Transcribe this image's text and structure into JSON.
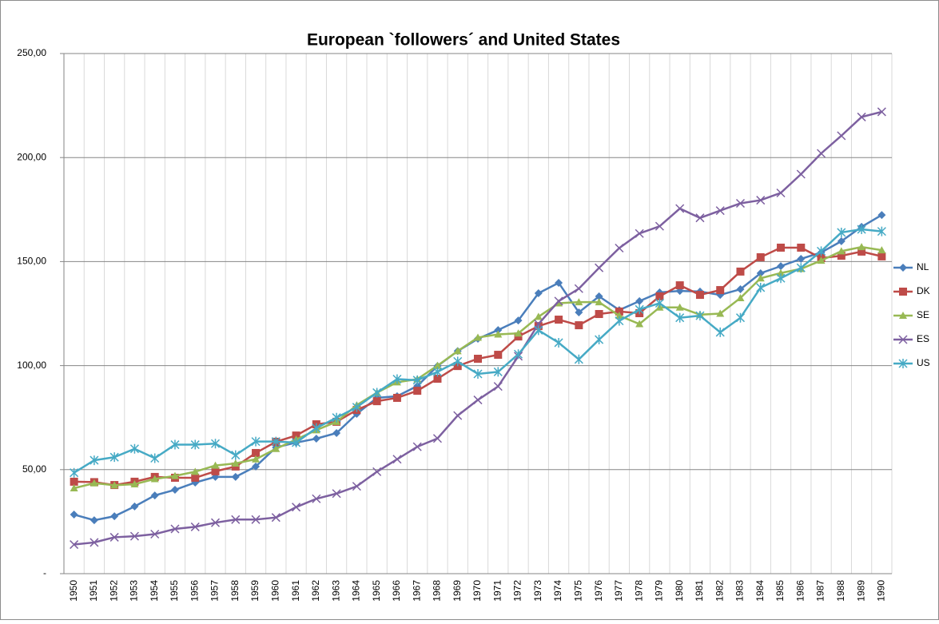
{
  "chart_data": {
    "type": "line",
    "title": "European `followers´ and United States",
    "categories": [
      "1950",
      "1951",
      "1952",
      "1953",
      "1954",
      "1955",
      "1956",
      "1957",
      "1958",
      "1959",
      "1960",
      "1961",
      "1962",
      "1963",
      "1964",
      "1965",
      "1966",
      "1967",
      "1968",
      "1969",
      "1970",
      "1971",
      "1972",
      "1973",
      "1974",
      "1975",
      "1976",
      "1977",
      "1978",
      "1979",
      "1980",
      "1981",
      "1982",
      "1983",
      "1984",
      "1985",
      "1986",
      "1987",
      "1988",
      "1989",
      "1990"
    ],
    "series": [
      {
        "name": "NL",
        "color": "#4a7ebb",
        "marker": "diamond",
        "values": [
          28.4,
          25.7,
          27.6,
          32.3,
          37.6,
          40.3,
          43.8,
          46.5,
          46.5,
          51.5,
          60.7,
          63,
          64.9,
          67.6,
          76.8,
          84.5,
          85.3,
          90.2,
          99.8,
          107,
          112.9,
          117.1,
          121.7,
          134.8,
          139.8,
          125.6,
          133.3,
          126.7,
          131,
          135.2,
          135.9,
          135.6,
          134,
          136.7,
          144.4,
          147.8,
          151.3,
          154.4,
          159.8,
          166.7,
          172.4
        ]
      },
      {
        "name": "DK",
        "color": "#be4b48",
        "marker": "square",
        "values": [
          44.2,
          44,
          42.6,
          44.2,
          46.5,
          46.1,
          46.1,
          49.2,
          51.5,
          58,
          63.4,
          66.4,
          71.8,
          73,
          78.7,
          82.9,
          84.5,
          87.9,
          93.7,
          99.8,
          103.3,
          105.2,
          114,
          119,
          122.1,
          119.4,
          124.8,
          126,
          125.2,
          133.3,
          138.6,
          134,
          136.3,
          145.2,
          152.1,
          156.7,
          156.7,
          151.7,
          152.8,
          154.8,
          152.5
        ]
      },
      {
        "name": "SE",
        "color": "#98b954",
        "marker": "triangle",
        "values": [
          41.1,
          43.5,
          42.5,
          43,
          45.5,
          47,
          49,
          52,
          53,
          55,
          60,
          64.5,
          69,
          73,
          81,
          87,
          92,
          93.5,
          100,
          107,
          113.5,
          115,
          115.5,
          123.5,
          130,
          130.5,
          130.5,
          124,
          120,
          128,
          128,
          124.5,
          125,
          132.5,
          142,
          144.5,
          146.5,
          150.5,
          155,
          157,
          155.5
        ]
      },
      {
        "name": "ES",
        "color": "#7d60a0",
        "marker": "x",
        "values": [
          14,
          15,
          17.5,
          18,
          19,
          21.5,
          22.5,
          24.5,
          26,
          26,
          27,
          32,
          36,
          38.5,
          42,
          49,
          55,
          61,
          65,
          76,
          83.5,
          90,
          104.5,
          120,
          131,
          137,
          147,
          156.5,
          163.5,
          167,
          175.5,
          171,
          174.5,
          178,
          179.5,
          183,
          192,
          202,
          210.5,
          219.5,
          222
        ]
      },
      {
        "name": "US",
        "color": "#46aac5",
        "marker": "star",
        "values": [
          48.5,
          54.5,
          56,
          60,
          55.5,
          62,
          62,
          62.5,
          57,
          63.5,
          63.5,
          63,
          70,
          75,
          80,
          87,
          93.5,
          93,
          97,
          102,
          96,
          97,
          105.5,
          117,
          111,
          103,
          112.5,
          121.5,
          127,
          130,
          123,
          124,
          116,
          123,
          137.5,
          142,
          147,
          155,
          164,
          165.5,
          164.5
        ]
      }
    ],
    "ylim": [
      0,
      250
    ],
    "yticks": [
      {
        "value": 0,
        "label": "-"
      },
      {
        "value": 50,
        "label": "50,00"
      },
      {
        "value": 100,
        "label": "100,00"
      },
      {
        "value": 150,
        "label": "150,00"
      },
      {
        "value": 200,
        "label": "200,00"
      },
      {
        "value": 250,
        "label": "250,00"
      }
    ],
    "grid": true,
    "legend": "right"
  }
}
